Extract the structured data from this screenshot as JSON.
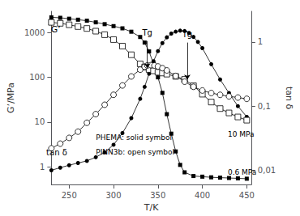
{
  "chart_data": {
    "type": "line",
    "xlabel": "T/K",
    "ylabel": "G’/MPa",
    "y2label": "tan δ",
    "xlim": [
      230,
      455
    ],
    "ylim": [
      0.4,
      3000
    ],
    "y2lim": [
      0.006,
      3
    ],
    "xticks": [
      250,
      300,
      350,
      400,
      450
    ],
    "yticks": [
      1,
      10,
      100,
      1000
    ],
    "y2ticks": [
      {
        "value": 0.01,
        "label": "0,01"
      },
      {
        "value": 0.1,
        "label": "0,1"
      },
      1
    ],
    "log": "y",
    "grid": false,
    "annotations": [
      {
        "text": "Tg",
        "x": 338,
        "y": 650,
        "arrow_to": [
          338,
          160
        ]
      },
      {
        "text": "Tg",
        "x": 383,
        "y": 600,
        "arrow_to": [
          383,
          90
        ]
      },
      {
        "text": "G’"
      },
      {
        "text": "tan δ"
      },
      {
        "text": "10 MPa"
      },
      {
        "text": "0.6 MPa"
      },
      {
        "text": "PHEMA: solid symbol"
      },
      {
        "text": "PINN3b: open symbol"
      }
    ],
    "series": [
      {
        "marker": "square",
        "color": "#000000",
        "x": [
          230,
          240,
          250,
          260,
          270,
          280,
          290,
          300,
          310,
          320,
          330,
          335,
          340,
          345,
          350,
          355,
          360,
          365,
          370,
          375,
          380,
          390,
          400,
          410,
          420,
          430,
          440,
          450
        ],
        "values": [
          2200,
          2150,
          2050,
          1950,
          1850,
          1700,
          1550,
          1400,
          1250,
          1050,
          800,
          600,
          380,
          200,
          100,
          45,
          15,
          5.5,
          2.2,
          1.1,
          0.75,
          0.62,
          0.6,
          0.58,
          0.57,
          0.56,
          0.55,
          0.54
        ]
      },
      {
        "marker": "circle",
        "color": "#000000",
        "axis": "y2",
        "x": [
          230,
          240,
          250,
          260,
          270,
          280,
          290,
          300,
          310,
          320,
          330,
          335,
          340,
          345,
          350,
          355,
          360,
          365,
          370,
          375,
          380,
          385,
          390,
          395,
          400,
          410,
          420,
          430,
          440,
          450
        ],
        "values": [
          0.01,
          0.011,
          0.012,
          0.013,
          0.014,
          0.016,
          0.019,
          0.025,
          0.038,
          0.065,
          0.13,
          0.2,
          0.32,
          0.5,
          0.72,
          0.96,
          1.18,
          1.35,
          1.45,
          1.5,
          1.48,
          1.38,
          1.2,
          1.0,
          0.8,
          0.45,
          0.26,
          0.16,
          0.1,
          0.068
        ]
      },
      {
        "marker": "open_square",
        "color": "#000000",
        "x": [
          230,
          240,
          250,
          260,
          270,
          280,
          290,
          300,
          310,
          320,
          330,
          335,
          340,
          345,
          350,
          355,
          360,
          370,
          380,
          390,
          400,
          410,
          420,
          430,
          440,
          450
        ],
        "values": [
          1700,
          1620,
          1500,
          1370,
          1240,
          1080,
          900,
          700,
          500,
          320,
          200,
          170,
          150,
          140,
          130,
          125,
          118,
          105,
          90,
          65,
          42,
          28,
          20,
          16,
          13,
          11
        ]
      },
      {
        "marker": "open_circle",
        "color": "#000000",
        "axis": "y2",
        "x": [
          230,
          240,
          250,
          260,
          270,
          280,
          290,
          300,
          310,
          320,
          330,
          335,
          338,
          342,
          346,
          350,
          355,
          360,
          370,
          380,
          390,
          400,
          410,
          420,
          430,
          440,
          450
        ],
        "values": [
          0.022,
          0.026,
          0.032,
          0.04,
          0.055,
          0.075,
          0.105,
          0.15,
          0.21,
          0.29,
          0.37,
          0.41,
          0.43,
          0.435,
          0.43,
          0.415,
          0.39,
          0.36,
          0.295,
          0.24,
          0.2,
          0.175,
          0.16,
          0.15,
          0.142,
          0.136,
          0.13
        ]
      }
    ]
  }
}
